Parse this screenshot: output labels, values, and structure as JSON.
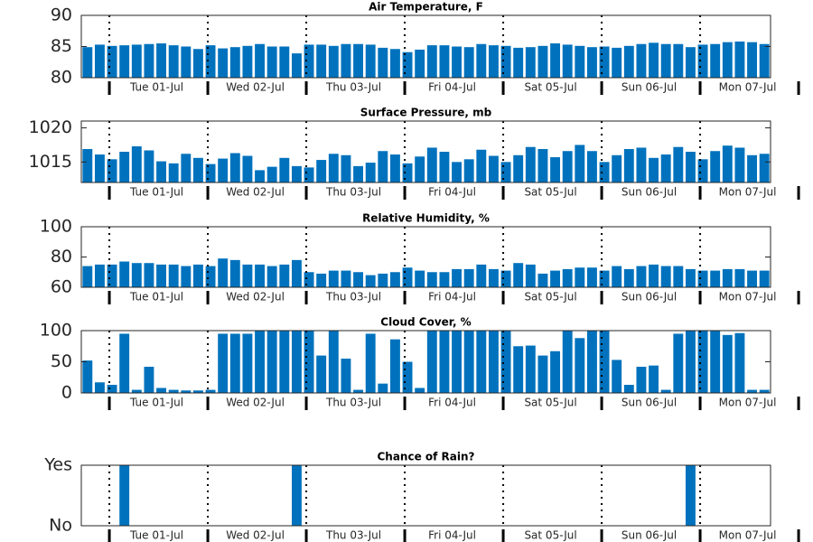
{
  "chart_data": [
    {
      "type": "bar",
      "title": "Air Temperature, F",
      "color": "#0072bd",
      "values": [
        84.9,
        85.3,
        85.1,
        85.2,
        85.3,
        85.4,
        85.5,
        85.2,
        85.0,
        84.6,
        85.2,
        84.7,
        84.9,
        85.1,
        85.4,
        85.0,
        85.0,
        83.9,
        85.3,
        85.3,
        85.1,
        85.4,
        85.4,
        85.3,
        84.8,
        84.6,
        84.1,
        84.5,
        85.2,
        85.2,
        85.0,
        84.9,
        85.4,
        85.2,
        85.1,
        84.8,
        84.9,
        85.1,
        85.5,
        85.3,
        85.1,
        84.9,
        85.0,
        84.8,
        85.1,
        85.4,
        85.6,
        85.4,
        85.4,
        84.9,
        85.3,
        85.4,
        85.7,
        85.8,
        85.7,
        85.4
      ],
      "ylim": [
        80,
        90
      ],
      "yticks": [
        80,
        85,
        90
      ],
      "xlim": [
        -0.5,
        55.5
      ],
      "xticks": [
        {
          "value": 6,
          "label": "Tue 01-Jul"
        },
        {
          "value": 14,
          "label": "Wed 02-Jul"
        },
        {
          "value": 22,
          "label": "Thu 03-Jul"
        },
        {
          "value": 30,
          "label": "Fri 04-Jul"
        },
        {
          "value": 38,
          "label": "Sat 05-Jul"
        },
        {
          "value": 46,
          "label": "Sun 06-Jul"
        },
        {
          "value": 54,
          "label": "Mon 07-Jul"
        }
      ]
    },
    {
      "type": "bar",
      "title": "Surface Pressure, mb",
      "color": "#0072bd",
      "values": [
        1016.9,
        1016.1,
        1015.4,
        1016.5,
        1017.3,
        1016.7,
        1015.1,
        1014.8,
        1016.2,
        1015.6,
        1014.7,
        1015.5,
        1016.3,
        1015.9,
        1013.8,
        1014.3,
        1015.6,
        1014.4,
        1014.2,
        1015.3,
        1016.2,
        1016.0,
        1014.4,
        1014.9,
        1016.6,
        1016.1,
        1014.8,
        1015.8,
        1017.1,
        1016.5,
        1015.0,
        1015.4,
        1016.8,
        1015.9,
        1015.0,
        1016.0,
        1017.2,
        1016.9,
        1015.7,
        1016.6,
        1017.5,
        1016.6,
        1015.0,
        1016.0,
        1016.9,
        1017.1,
        1015.6,
        1016.1,
        1017.2,
        1016.5,
        1015.4,
        1016.6,
        1017.4,
        1017.1,
        1016.0,
        1016.2
      ],
      "ylim": [
        1012,
        1021
      ],
      "yticks": [
        1015,
        1020
      ],
      "xlim": [
        -0.5,
        55.5
      ],
      "xticks": [
        {
          "value": 6,
          "label": "Tue 01-Jul"
        },
        {
          "value": 14,
          "label": "Wed 02-Jul"
        },
        {
          "value": 22,
          "label": "Thu 03-Jul"
        },
        {
          "value": 30,
          "label": "Fri 04-Jul"
        },
        {
          "value": 38,
          "label": "Sat 05-Jul"
        },
        {
          "value": 46,
          "label": "Sun 06-Jul"
        },
        {
          "value": 54,
          "label": "Mon 07-Jul"
        }
      ]
    },
    {
      "type": "bar",
      "title": "Relative Humidity, %",
      "color": "#0072bd",
      "values": [
        74,
        75,
        75,
        77,
        76,
        76,
        75,
        75,
        74,
        75,
        74,
        79,
        78,
        75,
        75,
        74,
        75,
        78,
        70,
        69,
        71,
        71,
        70,
        68,
        69,
        70,
        73,
        71,
        70,
        70,
        72,
        72,
        75,
        72,
        71,
        76,
        75,
        69,
        71,
        72,
        73,
        73,
        71,
        74,
        72,
        74,
        75,
        74,
        74,
        72,
        71,
        71,
        72,
        72,
        71,
        71
      ],
      "ylim": [
        60,
        100
      ],
      "yticks": [
        60,
        80,
        100
      ],
      "xlim": [
        -0.5,
        55.5
      ],
      "xticks": [
        {
          "value": 6,
          "label": "Tue 01-Jul"
        },
        {
          "value": 14,
          "label": "Wed 02-Jul"
        },
        {
          "value": 22,
          "label": "Thu 03-Jul"
        },
        {
          "value": 30,
          "label": "Fri 04-Jul"
        },
        {
          "value": 38,
          "label": "Sat 05-Jul"
        },
        {
          "value": 46,
          "label": "Sun 06-Jul"
        },
        {
          "value": 54,
          "label": "Mon 07-Jul"
        }
      ]
    },
    {
      "type": "bar",
      "title": "Cloud Cover, %",
      "color": "#0072bd",
      "values": [
        52,
        17,
        13,
        95,
        5,
        42,
        8,
        5,
        4,
        4,
        5,
        95,
        95,
        95,
        100,
        100,
        100,
        100,
        100,
        60,
        100,
        55,
        5,
        95,
        15,
        86,
        50,
        8,
        100,
        100,
        100,
        100,
        100,
        100,
        100,
        75,
        76,
        60,
        67,
        100,
        88,
        100,
        100,
        53,
        13,
        42,
        44,
        5,
        95,
        100,
        100,
        100,
        93,
        96,
        5,
        5
      ],
      "ylim": [
        0,
        100
      ],
      "yticks": [
        0,
        50,
        100
      ],
      "xlim": [
        -0.5,
        55.5
      ],
      "xticks": [
        {
          "value": 6,
          "label": "Tue 01-Jul"
        },
        {
          "value": 14,
          "label": "Wed 02-Jul"
        },
        {
          "value": 22,
          "label": "Thu 03-Jul"
        },
        {
          "value": 30,
          "label": "Fri 04-Jul"
        },
        {
          "value": 38,
          "label": "Sat 05-Jul"
        },
        {
          "value": 46,
          "label": "Sun 06-Jul"
        },
        {
          "value": 54,
          "label": "Mon 07-Jul"
        }
      ]
    },
    {
      "type": "bar",
      "title": "Chance of Rain?",
      "color": "#0072bd",
      "values": [
        0,
        0,
        0,
        1,
        0,
        0,
        0,
        0,
        0,
        0,
        0,
        0,
        0,
        0,
        0,
        0,
        0,
        1,
        0,
        0,
        0,
        0,
        0,
        0,
        0,
        0,
        0,
        0,
        0,
        0,
        0,
        0,
        0,
        0,
        0,
        0,
        0,
        0,
        0,
        0,
        0,
        0,
        0,
        0,
        0,
        0,
        0,
        0,
        0,
        1,
        0,
        0,
        0,
        0,
        0,
        0
      ],
      "ylim": [
        0,
        1
      ],
      "yticks": [
        {
          "value": 0,
          "label": "No"
        },
        {
          "value": 1,
          "label": "Yes"
        }
      ],
      "xlim": [
        -0.5,
        55.5
      ],
      "xticks": [
        {
          "value": 6,
          "label": "Tue 01-Jul"
        },
        {
          "value": 14,
          "label": "Wed 02-Jul"
        },
        {
          "value": 22,
          "label": "Thu 03-Jul"
        },
        {
          "value": 30,
          "label": "Fri 04-Jul"
        },
        {
          "value": 38,
          "label": "Sat 05-Jul"
        },
        {
          "value": 46,
          "label": "Sun 06-Jul"
        },
        {
          "value": 54,
          "label": "Mon 07-Jul"
        }
      ]
    }
  ]
}
